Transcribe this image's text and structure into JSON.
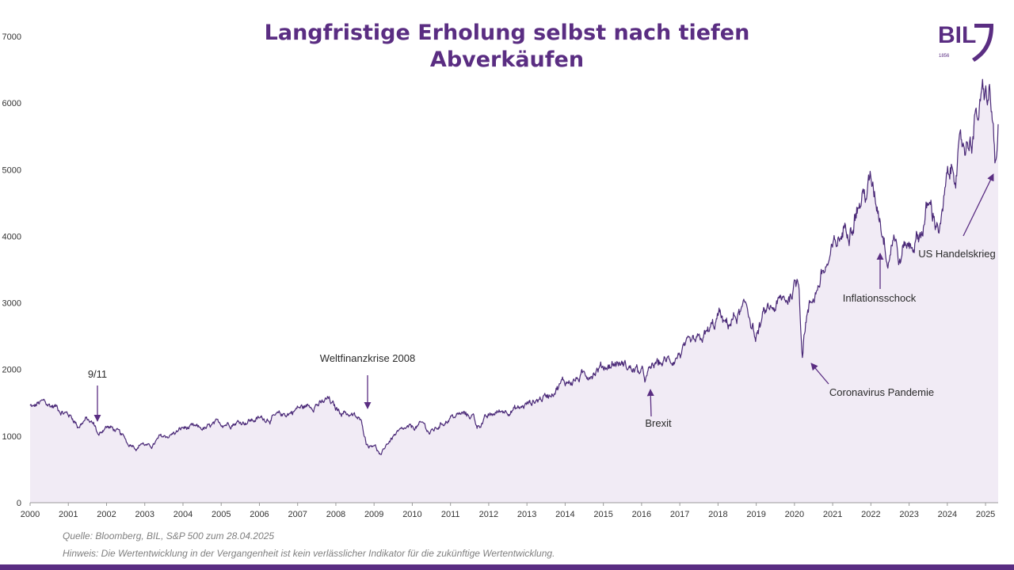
{
  "header": {
    "title_line1": "Langfristige Erholung selbst nach tiefen",
    "title_line2": "Abverkäufen"
  },
  "logo": {
    "text": "BIL",
    "year": "1856",
    "color": "#5a2d82"
  },
  "footer": {
    "source": "Quelle: Bloomberg, BIL, S&P 500 zum 28.04.2025",
    "note": "Hinweis: Die Wertentwicklung in der Vergangenheit ist kein verlässlicher Indikator für die zukünftige Wertentwicklung."
  },
  "colors": {
    "line": "#4b2a78",
    "fill": "#f1ebf5",
    "accent": "#5a2d82"
  },
  "chart_data": {
    "type": "area",
    "title": "Langfristige Erholung selbst nach tiefen Abverkäufen",
    "xlabel": "",
    "ylabel": "",
    "xlim": [
      2000,
      2025.33
    ],
    "ylim": [
      0,
      7000
    ],
    "grid": false,
    "y_ticks": [
      0,
      1000,
      2000,
      3000,
      4000,
      5000,
      6000,
      7000
    ],
    "x_ticks": [
      2000,
      2001,
      2002,
      2003,
      2004,
      2005,
      2006,
      2007,
      2008,
      2009,
      2010,
      2011,
      2012,
      2013,
      2014,
      2015,
      2016,
      2017,
      2018,
      2019,
      2020,
      2021,
      2022,
      2023,
      2024,
      2025
    ],
    "series": [
      {
        "x": [
          2000.0,
          2000.1,
          2000.2,
          2000.35,
          2000.5,
          2000.7,
          2000.9,
          2001.0,
          2001.15,
          2001.25,
          2001.45,
          2001.6,
          2001.7,
          2001.8,
          2001.95,
          2002.1,
          2002.25,
          2002.4,
          2002.5,
          2002.55,
          2002.7,
          2002.8,
          2002.9,
          2003.0,
          2003.1,
          2003.2,
          2003.4,
          2003.6,
          2003.8,
          2004.0,
          2004.3,
          2004.6,
          2004.9,
          2005.2,
          2005.6,
          2006.0,
          2006.4,
          2006.8,
          2007.0,
          2007.3,
          2007.5,
          2007.6,
          2007.8,
          2008.0,
          2008.3,
          2008.6,
          2008.7,
          2008.8,
          2008.9,
          2009.0,
          2009.1,
          2009.18,
          2009.3,
          2009.5,
          2009.8,
          2010.0,
          2010.3,
          2010.45,
          2010.6,
          2010.8,
          2011.0,
          2011.3,
          2011.6,
          2011.7,
          2011.9,
          2012.2,
          2012.5,
          2012.8,
          2013.0,
          2013.5,
          2013.9,
          2014.3,
          2014.7,
          2015.0,
          2015.4,
          2015.6,
          2015.8,
          2016.0,
          2016.1,
          2016.3,
          2016.5,
          2016.8,
          2017.0,
          2017.5,
          2017.9,
          2018.05,
          2018.15,
          2018.5,
          2018.75,
          2018.9,
          2018.98,
          2019.2,
          2019.5,
          2019.8,
          2020.0,
          2020.12,
          2020.2,
          2020.3,
          2020.5,
          2020.7,
          2020.9,
          2021.0,
          2021.3,
          2021.6,
          2021.9,
          2022.0,
          2022.2,
          2022.45,
          2022.6,
          2022.75,
          2022.9,
          2023.0,
          2023.3,
          2023.5,
          2023.65,
          2023.83,
          2024.0,
          2024.3,
          2024.6,
          2024.9,
          2025.1,
          2025.2,
          2025.27,
          2025.33
        ],
        "y": [
          1450,
          1420,
          1480,
          1500,
          1460,
          1440,
          1350,
          1330,
          1250,
          1150,
          1250,
          1200,
          1150,
          1000,
          1140,
          1130,
          1080,
          1000,
          950,
          880,
          880,
          820,
          900,
          880,
          840,
          850,
          980,
          1000,
          1050,
          1120,
          1120,
          1110,
          1180,
          1200,
          1220,
          1260,
          1280,
          1350,
          1420,
          1450,
          1500,
          1470,
          1550,
          1400,
          1350,
          1250,
          1150,
          900,
          860,
          900,
          780,
          690,
          850,
          1000,
          1090,
          1120,
          1180,
          1050,
          1100,
          1200,
          1280,
          1330,
          1300,
          1150,
          1250,
          1350,
          1400,
          1410,
          1480,
          1600,
          1800,
          1850,
          1970,
          2050,
          2100,
          2050,
          2000,
          1950,
          1850,
          2050,
          2100,
          2150,
          2250,
          2400,
          2650,
          2850,
          2640,
          2800,
          2900,
          2700,
          2450,
          2800,
          2950,
          3050,
          3250,
          3350,
          2240,
          2800,
          3100,
          3400,
          3600,
          3750,
          4100,
          4400,
          4700,
          4790,
          4450,
          3700,
          4100,
          3600,
          3900,
          3850,
          4050,
          4450,
          4300,
          4150,
          4800,
          5200,
          5500,
          6000,
          6100,
          5600,
          4980,
          5500
        ]
      }
    ],
    "annotations": [
      {
        "text": "9/11",
        "x": 2001.7,
        "y": 1150
      },
      {
        "text": "Weltfinanzkrise 2008",
        "x": 2008.8,
        "y": 1250
      },
      {
        "text": "Brexit",
        "x": 2016.1,
        "y": 1850
      },
      {
        "text": "Coronavirus Pandemie",
        "x": 2020.2,
        "y": 2240
      },
      {
        "text": "Inflationsschock",
        "x": 2022.2,
        "y": 3700
      },
      {
        "text": "US Handelskrieg",
        "x": 2025.2,
        "y": 4980
      }
    ]
  }
}
